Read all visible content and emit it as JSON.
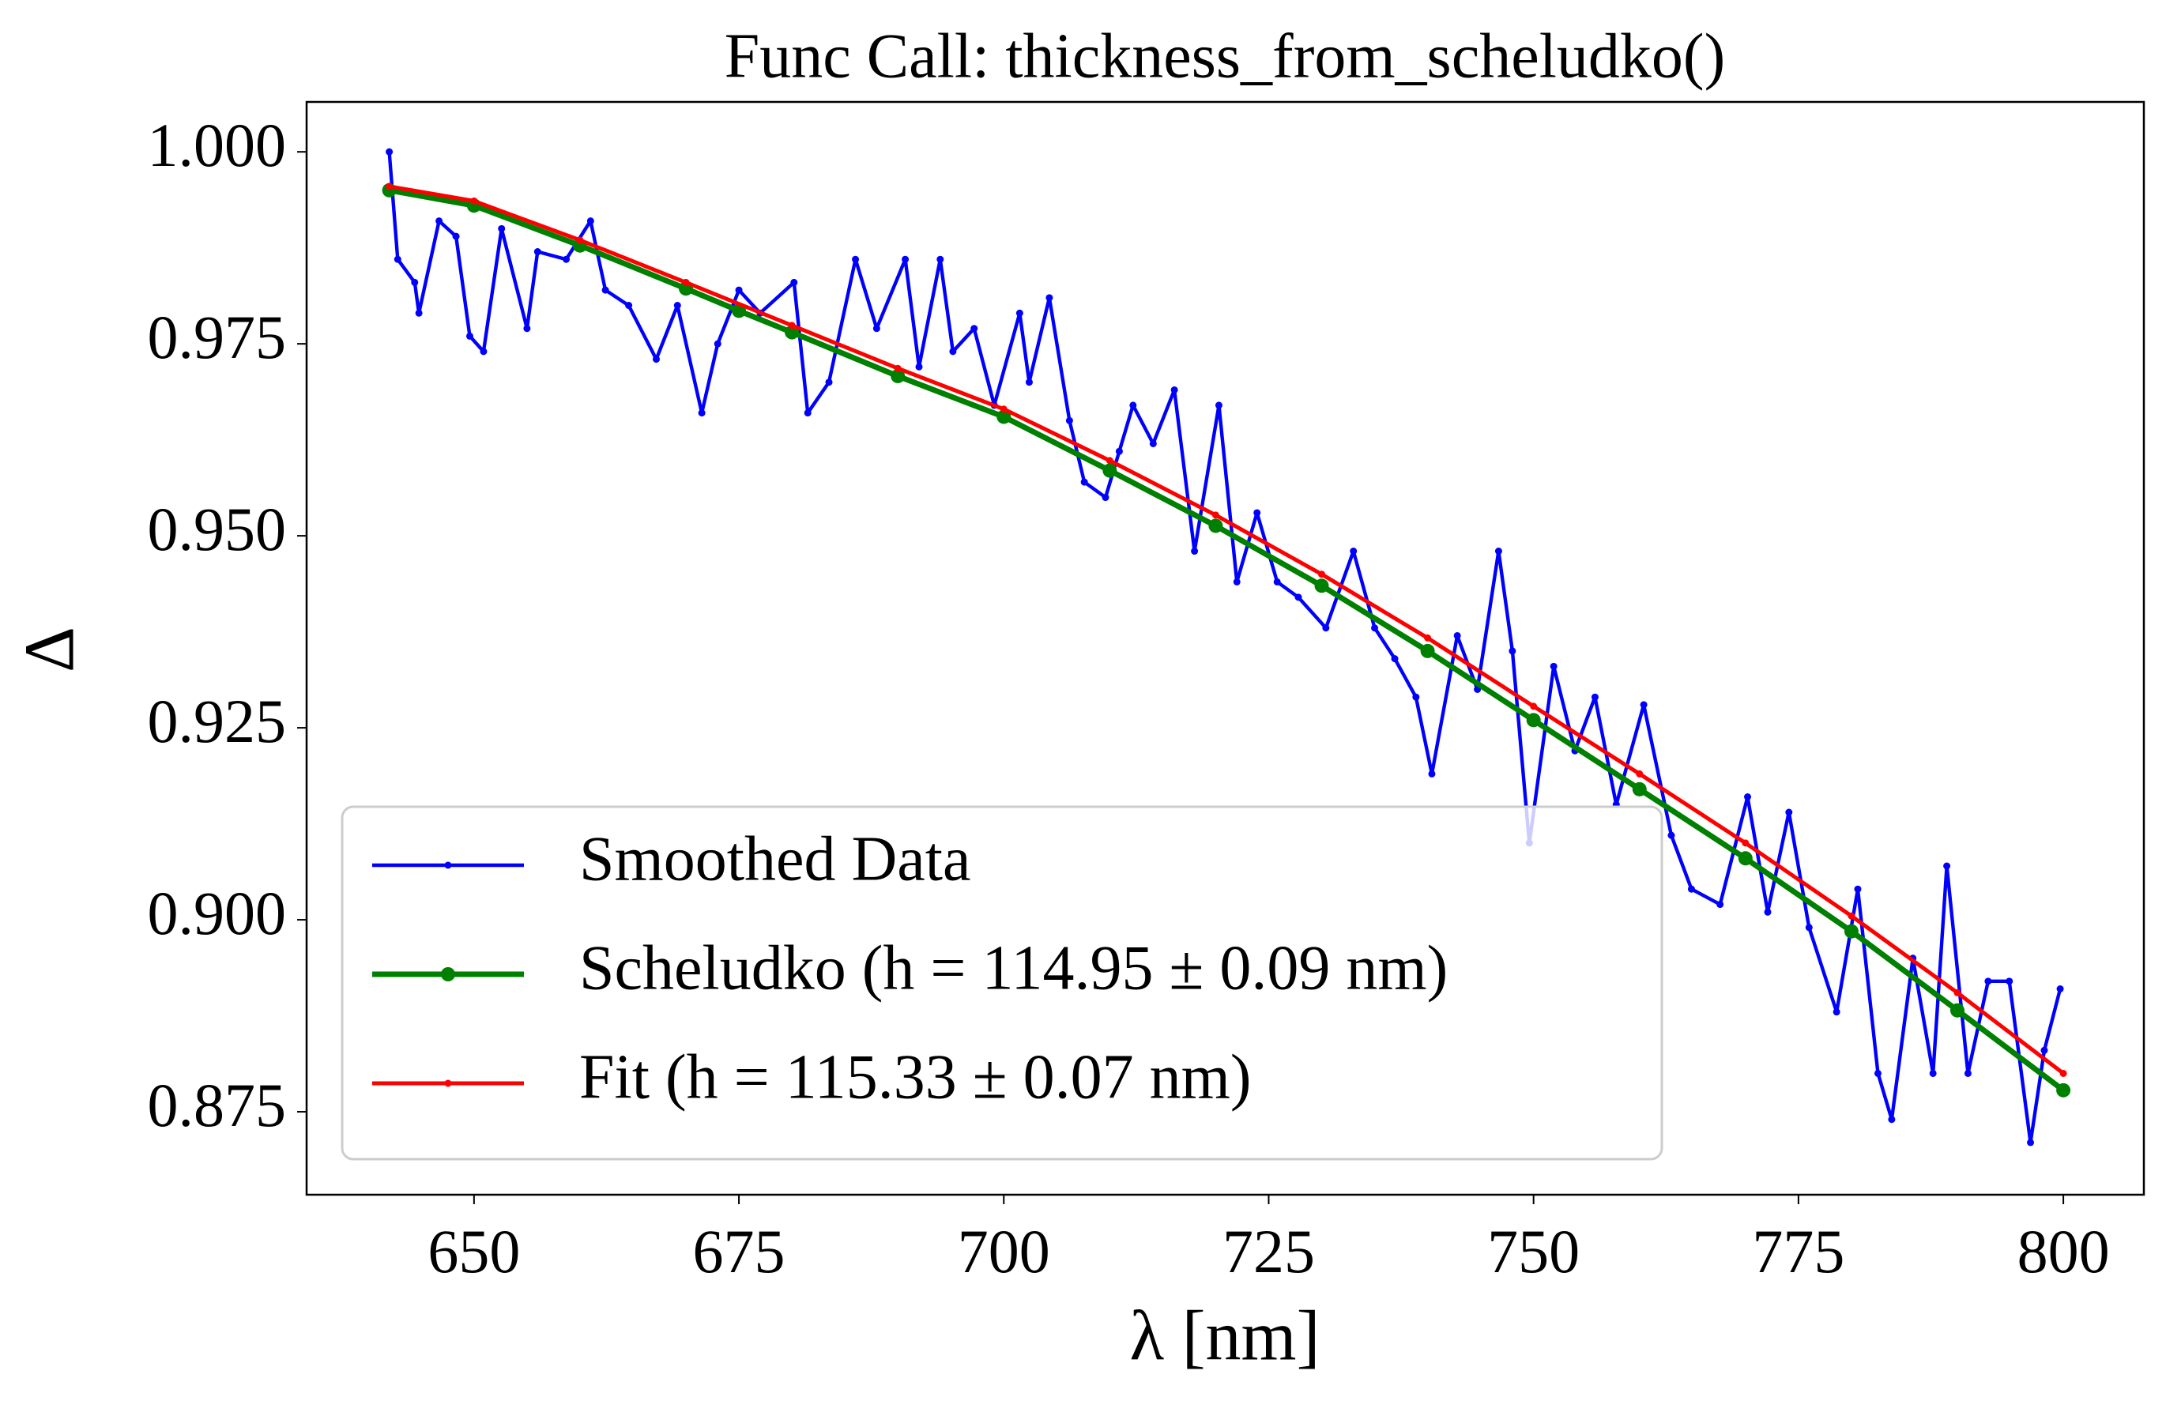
{
  "chart_data": {
    "type": "line",
    "title": "Func Call: thickness_from_scheludko()",
    "xlabel": "λ [nm]",
    "ylabel": "Δ",
    "xlim": [
      634.2,
      807.6
    ],
    "ylim": [
      0.8642,
      1.0065
    ],
    "xticks": [
      650,
      675,
      700,
      725,
      750,
      775,
      800
    ],
    "yticks": [
      {
        "value": 0.875,
        "label": "0.875"
      },
      {
        "value": 0.9,
        "label": "0.900"
      },
      {
        "value": 0.925,
        "label": "0.925"
      },
      {
        "value": 0.95,
        "label": "0.950"
      },
      {
        "value": 0.975,
        "label": "0.975"
      },
      {
        "value": 1,
        "label": "1.000"
      }
    ],
    "grid": false,
    "legend": "lower left",
    "series": [
      {
        "name": "Smoothed Data",
        "color": "#0000ff",
        "x": [
          642,
          642.8,
          644.4,
          644.8,
          646.7,
          648.3,
          649.6,
          650.9,
          652.6,
          655,
          656,
          658.7,
          661,
          662.4,
          664.6,
          667.2,
          669.2,
          671.5,
          673,
          675,
          677,
          680.2,
          681.5,
          683.5,
          686,
          688,
          690.7,
          692,
          694,
          695.2,
          697.2,
          699.1,
          701.5,
          702.4,
          704.3,
          706.2,
          707.6,
          709.6,
          710.9,
          712.2,
          714.1,
          716.1,
          718,
          720.3,
          722,
          723.9,
          725.8,
          727.8,
          730.4,
          733,
          735,
          736.9,
          738.9,
          740.4,
          742.8,
          744.7,
          746.7,
          748,
          749.6,
          751.9,
          753.9,
          755.8,
          757.8,
          760.4,
          763,
          764.9,
          767.6,
          770.2,
          772.1,
          774.1,
          776,
          778.6,
          780.6,
          782.5,
          783.8,
          785.8,
          787.7,
          789,
          791,
          792.9,
          794.9,
          796.9,
          798.2,
          799.7
        ],
        "values": [
          1.0,
          0.986,
          0.983,
          0.979,
          0.991,
          0.989,
          0.976,
          0.974,
          0.99,
          0.977,
          0.987,
          0.986,
          0.991,
          0.982,
          0.98,
          0.973,
          0.98,
          0.966,
          0.975,
          0.982,
          0.979,
          0.983,
          0.966,
          0.97,
          0.986,
          0.977,
          0.986,
          0.972,
          0.986,
          0.974,
          0.977,
          0.967,
          0.979,
          0.97,
          0.981,
          0.965,
          0.957,
          0.955,
          0.961,
          0.967,
          0.962,
          0.969,
          0.948,
          0.967,
          0.944,
          0.953,
          0.944,
          0.942,
          0.938,
          0.948,
          0.938,
          0.934,
          0.929,
          0.919,
          0.937,
          0.93,
          0.948,
          0.935,
          0.91,
          0.933,
          0.922,
          0.929,
          0.915,
          0.928,
          0.911,
          0.904,
          0.902,
          0.916,
          0.901,
          0.914,
          0.899,
          0.888,
          0.904,
          0.88,
          0.874,
          0.895,
          0.88,
          0.907,
          0.88,
          0.892,
          0.892,
          0.871,
          0.883,
          0.891
        ]
      },
      {
        "name": "Scheludko (h = 114.95 ± 0.09 nm)",
        "color": "#008000",
        "x": [
          642,
          650,
          660,
          670,
          675,
          680,
          690,
          700,
          710,
          720,
          730,
          740,
          750,
          760,
          770,
          780,
          790,
          800
        ],
        "values": [
          0.995,
          0.993,
          0.9878,
          0.9822,
          0.9793,
          0.9765,
          0.9708,
          0.9655,
          0.9585,
          0.9513,
          0.9435,
          0.935,
          0.926,
          0.917,
          0.908,
          0.8985,
          0.8882,
          0.8778
        ]
      },
      {
        "name": "Fit (h = 115.33 ± 0.07 nm)",
        "color": "#ff0000",
        "x": [
          642,
          650,
          660,
          670,
          680,
          690,
          700,
          710,
          720,
          730,
          740,
          750,
          760,
          770,
          780,
          790,
          800
        ],
        "values": [
          0.9955,
          0.9936,
          0.9885,
          0.983,
          0.9774,
          0.9718,
          0.9665,
          0.9598,
          0.9527,
          0.945,
          0.9367,
          0.9278,
          0.919,
          0.91,
          0.9005,
          0.8905,
          0.88
        ]
      }
    ]
  }
}
